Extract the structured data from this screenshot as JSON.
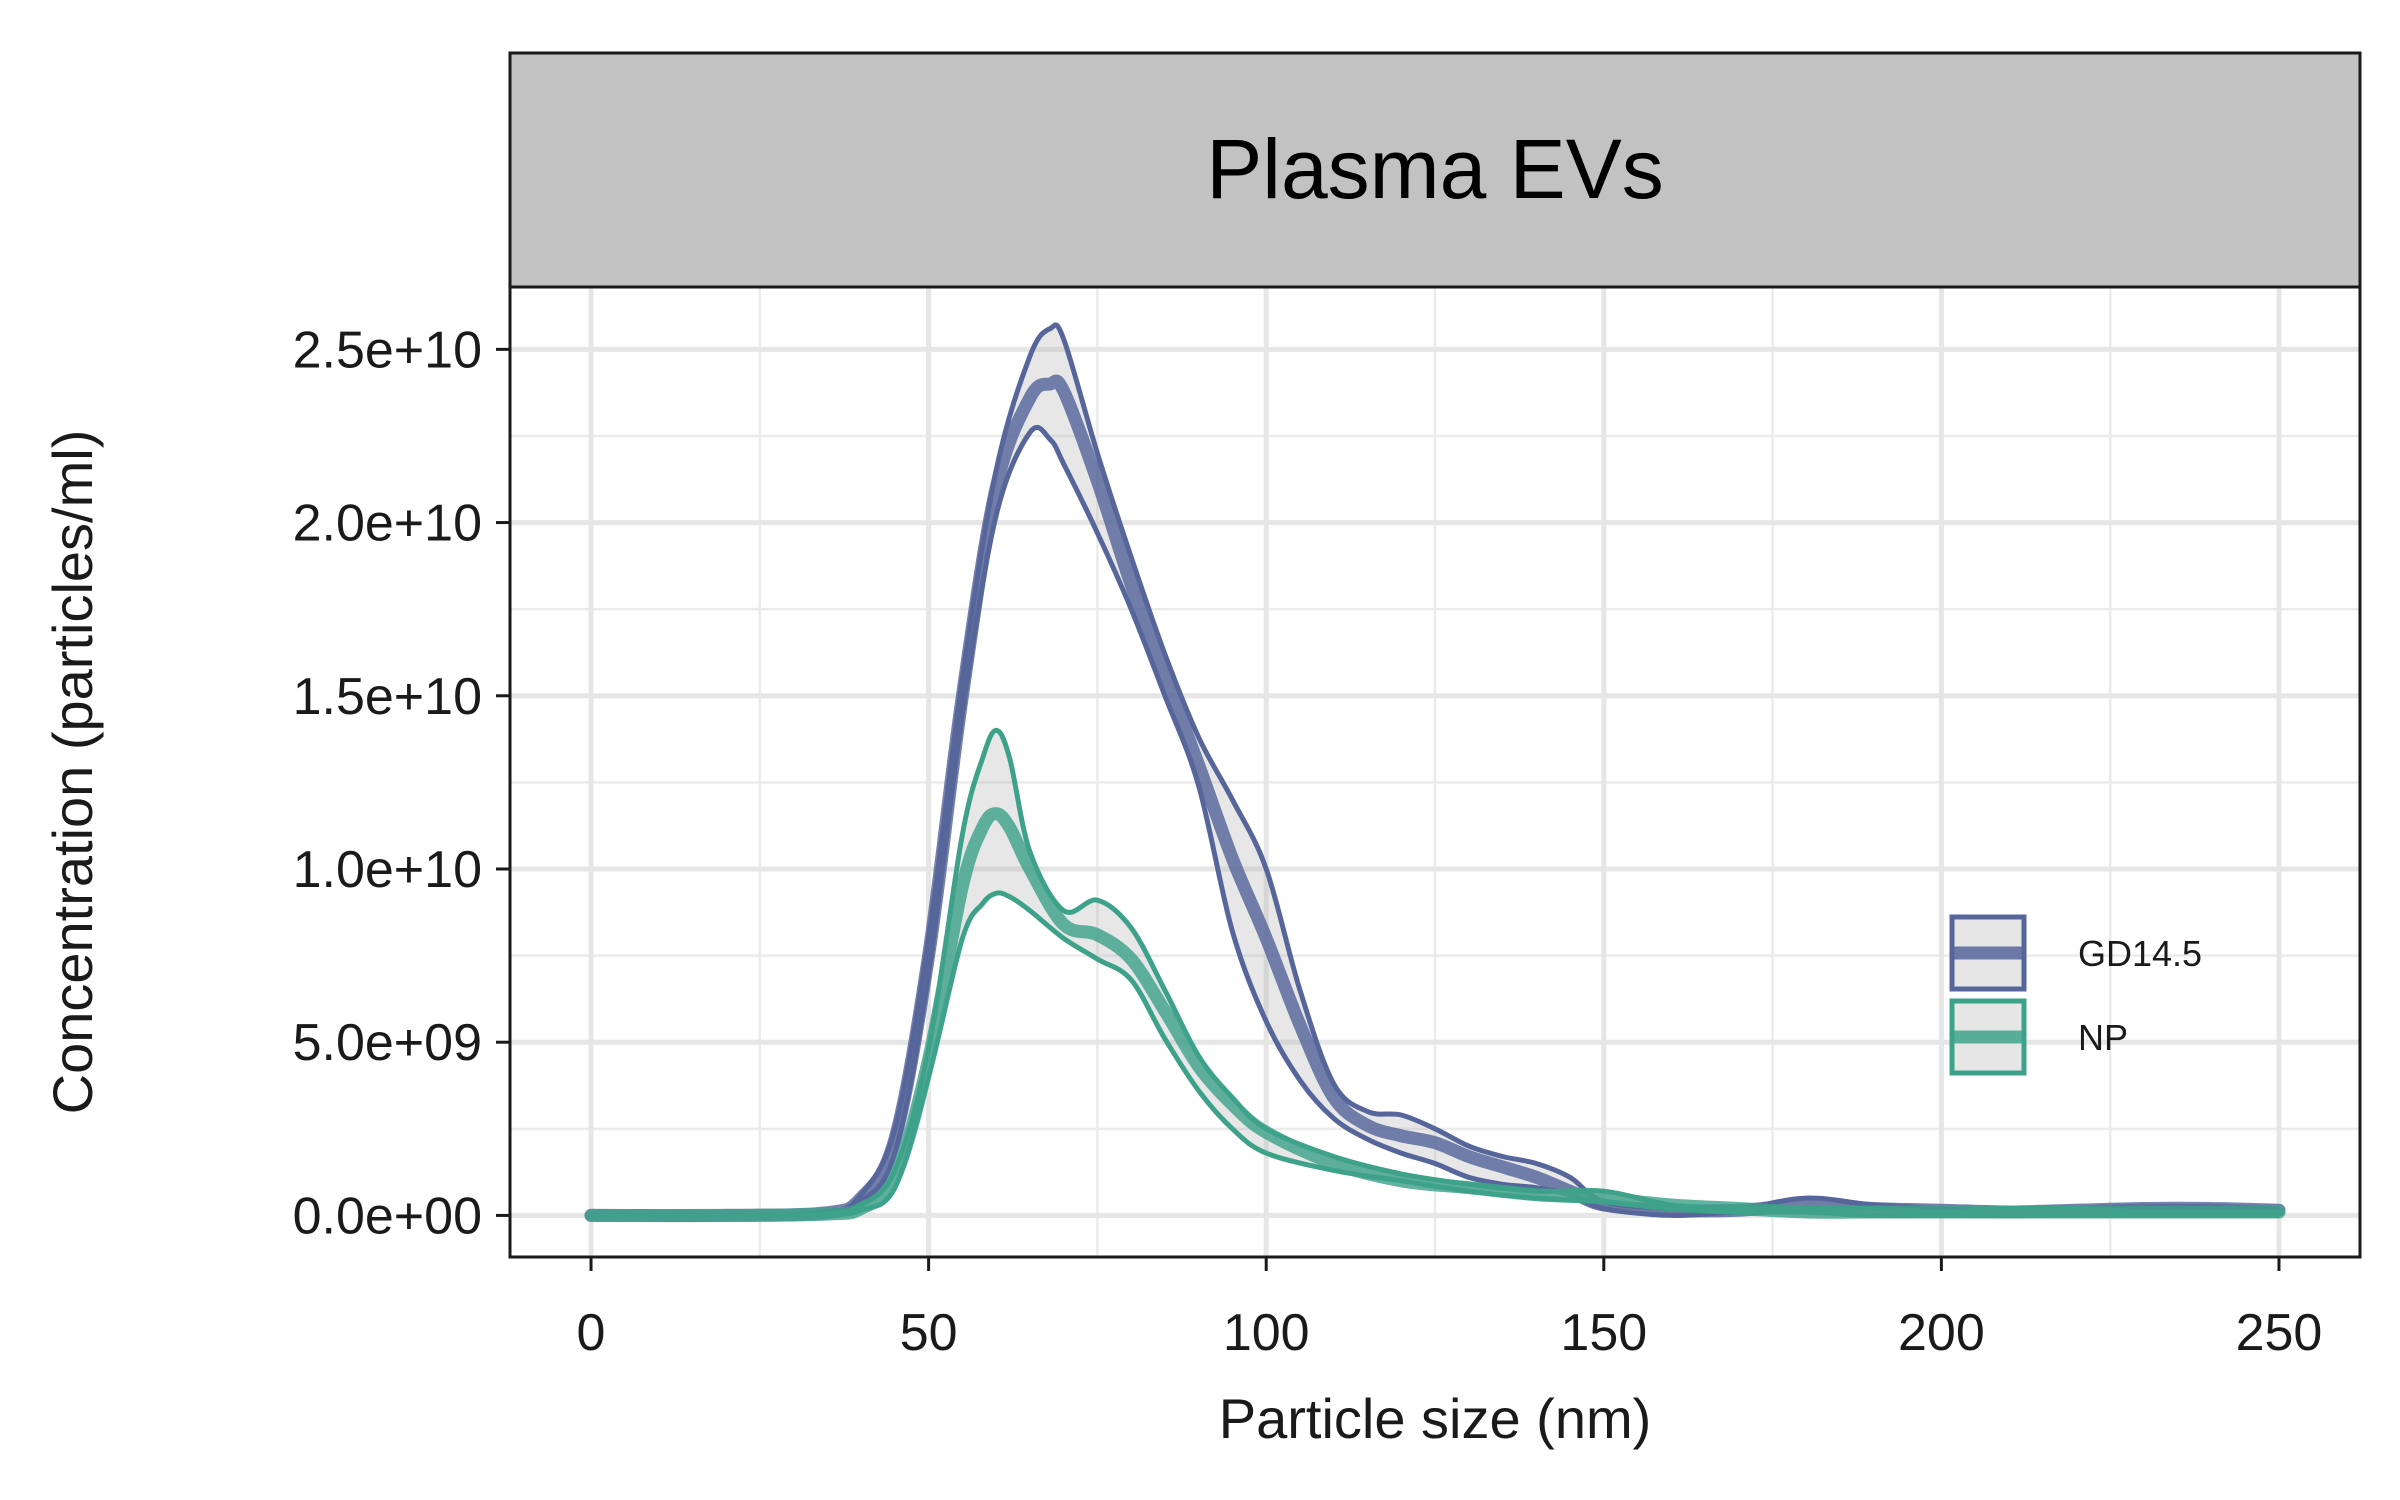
{
  "chart_data": {
    "type": "line",
    "title": "Plasma EVs",
    "xlabel": "Particle size (nm)",
    "ylabel": "Concentration (particles/ml)",
    "xlim": [
      -12,
      262
    ],
    "ylim": [
      -1200000000.0,
      26800000000.0
    ],
    "x_ticks": [
      0,
      50,
      100,
      150,
      200,
      250
    ],
    "x_tick_labels": [
      "0",
      "50",
      "100",
      "150",
      "200",
      "250"
    ],
    "y_ticks": [
      0,
      5000000000.0,
      10000000000.0,
      15000000000.0,
      20000000000.0,
      25000000000.0
    ],
    "y_tick_labels": [
      "0.0e+00",
      "5.0e+09",
      "1.0e+10",
      "1.5e+10",
      "2.0e+10",
      "2.5e+10"
    ],
    "grid": true,
    "legend_position": "bottom-right",
    "series": [
      {
        "name": "GD14.5",
        "color": "#56659a",
        "x": [
          0,
          20,
          35,
          40,
          45,
          50,
          55,
          60,
          65,
          68,
          70,
          75,
          80,
          85,
          90,
          95,
          100,
          105,
          110,
          115,
          120,
          125,
          130,
          135,
          140,
          145,
          150,
          160,
          170,
          180,
          190,
          200,
          210,
          220,
          230,
          240,
          250
        ],
        "upper": [
          0,
          0,
          100000000.0,
          600000000.0,
          2500000000.0,
          8000000000.0,
          15500000000.0,
          21500000000.0,
          24800000000.0,
          25600000000.0,
          25300000000.0,
          22000000000.0,
          19000000000.0,
          16200000000.0,
          13800000000.0,
          12000000000.0,
          10000000000.0,
          6500000000.0,
          3800000000.0,
          3000000000.0,
          2900000000.0,
          2500000000.0,
          2000000000.0,
          1700000000.0,
          1500000000.0,
          1100000000.0,
          400000000.0,
          200000000.0,
          200000000.0,
          500000000.0,
          300000000.0,
          200000000.0,
          100000000.0,
          200000000.0,
          250000000.0,
          250000000.0,
          200000000.0
        ],
        "mean": [
          0,
          0,
          80000000.0,
          500000000.0,
          2200000000.0,
          7500000000.0,
          15000000000.0,
          21000000000.0,
          23600000000.0,
          24000000000.0,
          23800000000.0,
          21200000000.0,
          18200000000.0,
          15600000000.0,
          13000000000.0,
          10300000000.0,
          8000000000.0,
          5500000000.0,
          3400000000.0,
          2600000000.0,
          2300000000.0,
          2100000000.0,
          1700000000.0,
          1400000000.0,
          1100000000.0,
          700000000.0,
          300000000.0,
          150000000.0,
          150000000.0,
          300000000.0,
          200000000.0,
          150000000.0,
          100000000.0,
          150000000.0,
          200000000.0,
          200000000.0,
          150000000.0
        ],
        "lower": [
          0,
          0,
          50000000.0,
          400000000.0,
          1800000000.0,
          7000000000.0,
          14500000000.0,
          20200000000.0,
          22600000000.0,
          22400000000.0,
          21700000000.0,
          19700000000.0,
          17500000000.0,
          15000000000.0,
          12400000000.0,
          8200000000.0,
          5600000000.0,
          3900000000.0,
          2800000000.0,
          2200000000.0,
          1800000000.0,
          1500000000.0,
          1100000000.0,
          900000000.0,
          800000000.0,
          600000000.0,
          200000000.0,
          0,
          100000000.0,
          100000000.0,
          0,
          0,
          0,
          100000000.0,
          100000000.0,
          100000000.0,
          100000000.0
        ]
      },
      {
        "name": "NP",
        "color": "#3ea28a",
        "x": [
          0,
          20,
          35,
          40,
          45,
          50,
          55,
          58,
          60,
          62,
          65,
          70,
          75,
          80,
          85,
          90,
          95,
          100,
          110,
          120,
          130,
          140,
          150,
          160,
          170,
          180,
          190,
          200,
          210,
          220,
          230,
          240,
          250
        ],
        "upper": [
          0,
          0,
          50000000.0,
          300000000.0,
          1300000000.0,
          4800000000.0,
          11000000000.0,
          13200000000.0,
          14000000000.0,
          13200000000.0,
          10500000000.0,
          8800000000.0,
          9100000000.0,
          8300000000.0,
          6500000000.0,
          4600000000.0,
          3400000000.0,
          2500000000.0,
          1700000000.0,
          1200000000.0,
          900000000.0,
          700000000.0,
          700000000.0,
          300000000.0,
          200000000.0,
          200000000.0,
          200000000.0,
          100000000.0,
          200000000.0,
          200000000.0,
          100000000.0,
          100000000.0,
          100000000.0
        ],
        "mean": [
          0,
          0,
          40000000.0,
          200000000.0,
          1100000000.0,
          4500000000.0,
          9500000000.0,
          11200000000.0,
          11600000000.0,
          11200000000.0,
          10000000000.0,
          8400000000.0,
          8100000000.0,
          7400000000.0,
          5900000000.0,
          4300000000.0,
          3200000000.0,
          2400000000.0,
          1500000000.0,
          1000000000.0,
          800000000.0,
          600000000.0,
          500000000.0,
          300000000.0,
          200000000.0,
          100000000.0,
          100000000.0,
          100000000.0,
          100000000.0,
          100000000.0,
          100000000.0,
          100000000.0,
          100000000.0
        ],
        "lower": [
          0,
          0,
          20000000.0,
          150000000.0,
          800000000.0,
          4000000000.0,
          8000000000.0,
          9000000000.0,
          9300000000.0,
          9200000000.0,
          8800000000.0,
          8000000000.0,
          7400000000.0,
          6800000000.0,
          5100000000.0,
          3600000000.0,
          2500000000.0,
          1800000000.0,
          1300000000.0,
          1000000000.0,
          700000000.0,
          500000000.0,
          400000000.0,
          200000000.0,
          100000000.0,
          100000000.0,
          0,
          0,
          0,
          0,
          0,
          0,
          0
        ]
      }
    ]
  }
}
